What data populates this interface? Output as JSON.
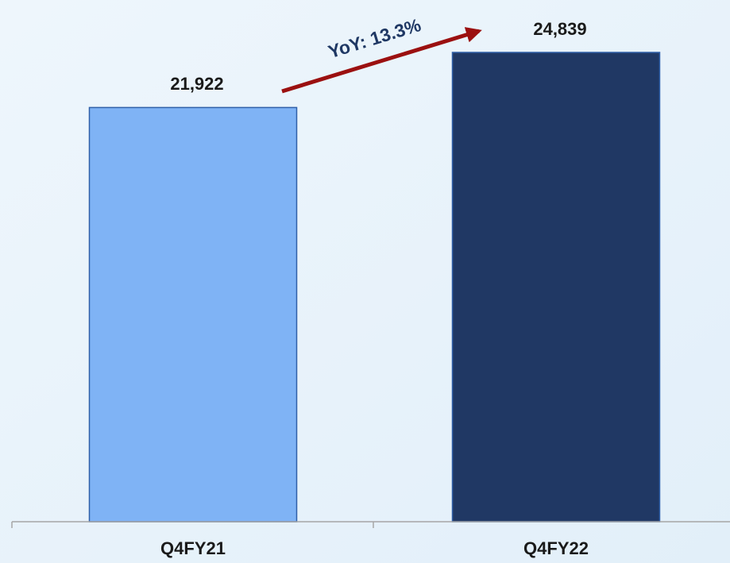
{
  "chart_data": {
    "type": "bar",
    "categories": [
      "Q4FY21",
      "Q4FY22"
    ],
    "values": [
      21922,
      24839
    ],
    "value_labels": [
      "21,922",
      "24,839"
    ],
    "colors": [
      "#7fb3f5",
      "#203864"
    ],
    "annotation": "YoY: 13.3%"
  }
}
